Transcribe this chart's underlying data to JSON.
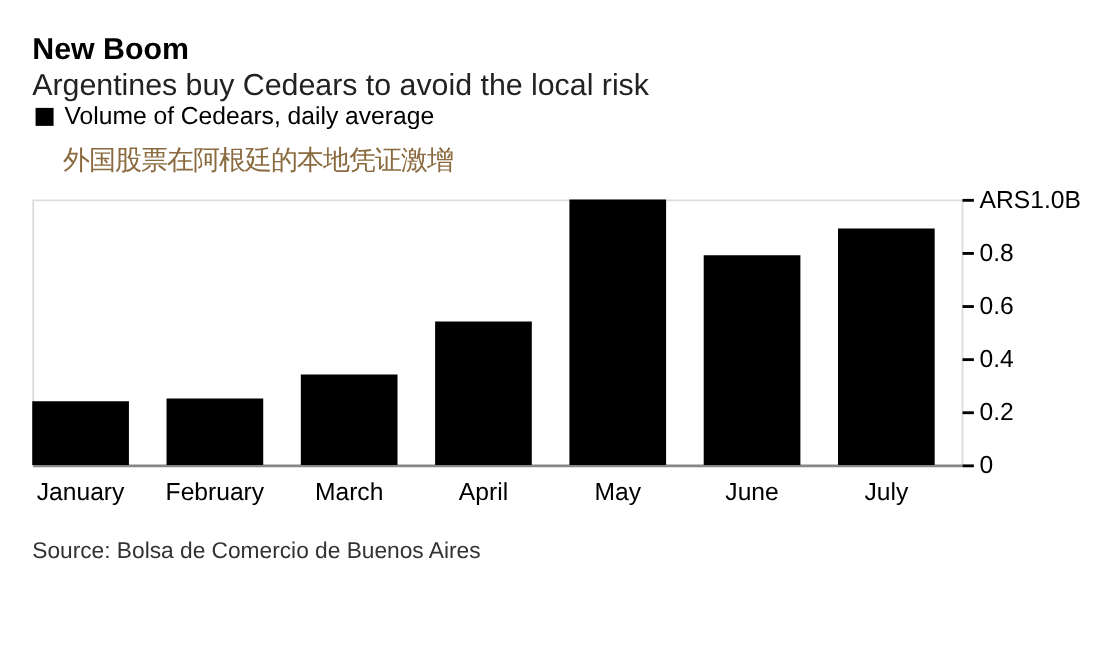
{
  "chart_data": {
    "type": "bar",
    "title": "New Boom",
    "subtitle": "Argentines buy Cedears to avoid the local risk",
    "categories": [
      "January",
      "February",
      "March",
      "April",
      "May",
      "June",
      "July"
    ],
    "series": [
      {
        "name": "Volume of Cedears, daily average",
        "color": "#000000",
        "values": [
          0.24,
          0.25,
          0.34,
          0.54,
          1.0,
          0.79,
          0.89
        ]
      }
    ],
    "ylim": [
      0,
      1.0
    ],
    "yticks": [
      0,
      0.2,
      0.4,
      0.6,
      0.8,
      {
        "value": 1.0,
        "label": "ARS1.0B"
      }
    ],
    "grid": false,
    "legend": "top left",
    "annotations": [
      "外国股票在阿根廷的本地凭证激增",
      "Source: Bolsa de Comercio de Buenos Aires"
    ]
  }
}
